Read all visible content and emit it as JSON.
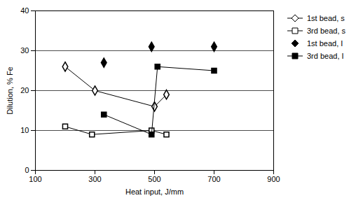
{
  "chart_data": {
    "type": "line",
    "xlabel": "Heat input, J/mm",
    "ylabel": "Dilution, % Fe",
    "xlim": [
      100,
      900
    ],
    "ylim": [
      0,
      40
    ],
    "xticks": [
      100,
      300,
      500,
      700,
      900
    ],
    "yticks": [
      0,
      10,
      20,
      30,
      40
    ],
    "grid": true,
    "legend": "right",
    "series": [
      {
        "name": "1st bead, s",
        "x": [
          200,
          300,
          500,
          540
        ],
        "values": [
          26,
          20,
          16,
          19
        ],
        "marker": "diamond-open",
        "line_style": "solid",
        "color": "black"
      },
      {
        "name": "3rd bead, s",
        "x": [
          200,
          290,
          490,
          540
        ],
        "values": [
          11,
          9,
          10,
          9
        ],
        "marker": "square-open",
        "line_style": "solid",
        "color": "black"
      },
      {
        "name": "1st bead, I",
        "x": [
          330,
          490,
          700
        ],
        "values": [
          27,
          31,
          31
        ],
        "marker": "diamond",
        "line_style": "none",
        "color": "black"
      },
      {
        "name": "3rd bead, I",
        "x": [
          330,
          490,
          510,
          700
        ],
        "values": [
          14,
          9,
          26,
          25
        ],
        "marker": "square",
        "line_style": "solid",
        "color": "black"
      }
    ]
  }
}
